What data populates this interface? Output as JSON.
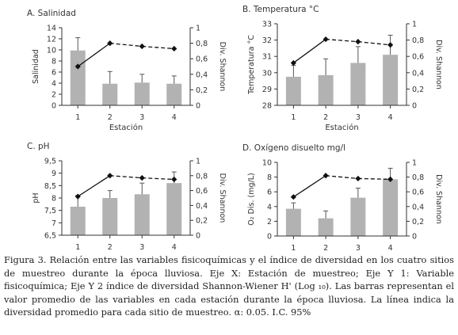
{
  "chart_data": [
    {
      "type": "bar",
      "title": "A. Salinidad",
      "xlabel": "Estación",
      "ylabel": "Salinidad",
      "y2label": "Div. Shannon",
      "categories": [
        "1",
        "2",
        "3",
        "4"
      ],
      "ylim": [
        0,
        14
      ],
      "yticks": [
        0,
        2,
        4,
        6,
        8,
        10,
        12,
        14
      ],
      "ytick_labels": [
        "0",
        "2",
        "4",
        "6",
        "8",
        "10",
        "12",
        "14"
      ],
      "y2lim": [
        0,
        1
      ],
      "y2ticks": [
        0,
        0.2,
        0.4,
        0.6,
        0.8,
        1
      ],
      "y2tick_labels": [
        "0",
        "0,2",
        "0,4",
        "0,6",
        "0,8",
        "1"
      ],
      "series": [
        {
          "kind": "bar",
          "values": [
            9.9,
            3.9,
            4.1,
            3.9
          ],
          "errors": [
            2.3,
            2.2,
            1.5,
            1.4
          ]
        },
        {
          "kind": "line",
          "axis": "y2",
          "values": [
            0.5,
            0.8,
            0.76,
            0.73
          ]
        }
      ]
    },
    {
      "type": "bar",
      "title": "B. Temperatura °C",
      "xlabel": "Estación",
      "ylabel": "Temperatura °C",
      "y2label": "Div. Shannon",
      "categories": [
        "1",
        "2",
        "3",
        "4"
      ],
      "ylim": [
        28,
        33
      ],
      "yticks": [
        28,
        29,
        30,
        31,
        32,
        33
      ],
      "ytick_labels": [
        "28",
        "29",
        "30",
        "31",
        "32",
        "33"
      ],
      "y2lim": [
        0,
        1
      ],
      "y2ticks": [
        0,
        0.2,
        0.4,
        0.6,
        0.8,
        1
      ],
      "y2tick_labels": [
        "0",
        "0,2",
        "0,4",
        "0,6",
        "0,8",
        "1"
      ],
      "series": [
        {
          "kind": "bar",
          "values": [
            29.75,
            29.85,
            30.6,
            31.1
          ],
          "errors": [
            0.7,
            1.0,
            1.0,
            1.2
          ]
        },
        {
          "kind": "line",
          "axis": "y2",
          "values": [
            0.52,
            0.81,
            0.78,
            0.74
          ]
        }
      ]
    },
    {
      "type": "bar",
      "title": "C. pH",
      "xlabel": "Estación",
      "ylabel": "pH",
      "y2label": "Div. Shannon",
      "categories": [
        "1",
        "2",
        "3",
        "4"
      ],
      "ylim": [
        6.5,
        9.5
      ],
      "yticks": [
        6.5,
        7,
        7.5,
        8,
        8.5,
        9,
        9.5
      ],
      "ytick_labels": [
        "6,5",
        "7",
        "7,5",
        "8",
        "8,5",
        "9",
        "9,5"
      ],
      "y2lim": [
        0,
        1
      ],
      "y2ticks": [
        0,
        0.2,
        0.4,
        0.6,
        0.8,
        1
      ],
      "y2tick_labels": [
        "0",
        "0,2",
        "0,4",
        "0,6",
        "0,8",
        "1"
      ],
      "series": [
        {
          "kind": "bar",
          "values": [
            7.65,
            8.0,
            8.15,
            8.6
          ],
          "errors": [
            0.45,
            0.3,
            0.45,
            0.45
          ]
        },
        {
          "kind": "line",
          "axis": "y2",
          "values": [
            0.52,
            0.8,
            0.77,
            0.75
          ]
        }
      ]
    },
    {
      "type": "bar",
      "title": "D. Oxígeno disuelto mg/l",
      "xlabel": "Estación",
      "ylabel": "O₂ Dis. (mg/L)",
      "y2label": "Div. Shannon",
      "categories": [
        "1",
        "2",
        "3",
        "4"
      ],
      "ylim": [
        0,
        10
      ],
      "yticks": [
        0,
        2,
        4,
        6,
        8,
        10
      ],
      "ytick_labels": [
        "0",
        "2",
        "4",
        "6",
        "8",
        "10"
      ],
      "y2lim": [
        0,
        1
      ],
      "y2ticks": [
        0,
        0.2,
        0.4,
        0.6,
        0.8,
        1
      ],
      "y2tick_labels": [
        "0",
        "0,2",
        "0,4",
        "0,6",
        "0,8",
        "1"
      ],
      "series": [
        {
          "kind": "bar",
          "values": [
            3.7,
            2.4,
            5.2,
            7.7
          ],
          "errors": [
            0.8,
            1.0,
            1.3,
            1.5
          ]
        },
        {
          "kind": "line",
          "axis": "y2",
          "values": [
            0.53,
            0.82,
            0.78,
            0.77
          ]
        }
      ]
    }
  ],
  "caption": "Figura 3. Relación entre las variables fisicoquímicas y el índice de diversidad en los cuatro sitios de muestreo durante la época lluviosa. Eje X: Estación de muestreo; Eje Y 1: Variable fisicoquímica; Eje Y 2 índice de diversidad Shannon-Wiener H' (Log ₁₀). Las barras representan el valor promedio de las variables en cada estación durante la época lluviosa. La línea indica la diversidad promedio para cada sitio de muestreo. α: 0.05. I.C. 95%",
  "colors": {
    "bar": "#b2b2b2",
    "errorbar": "#555555",
    "line": "#111111",
    "axis": "#333333"
  }
}
